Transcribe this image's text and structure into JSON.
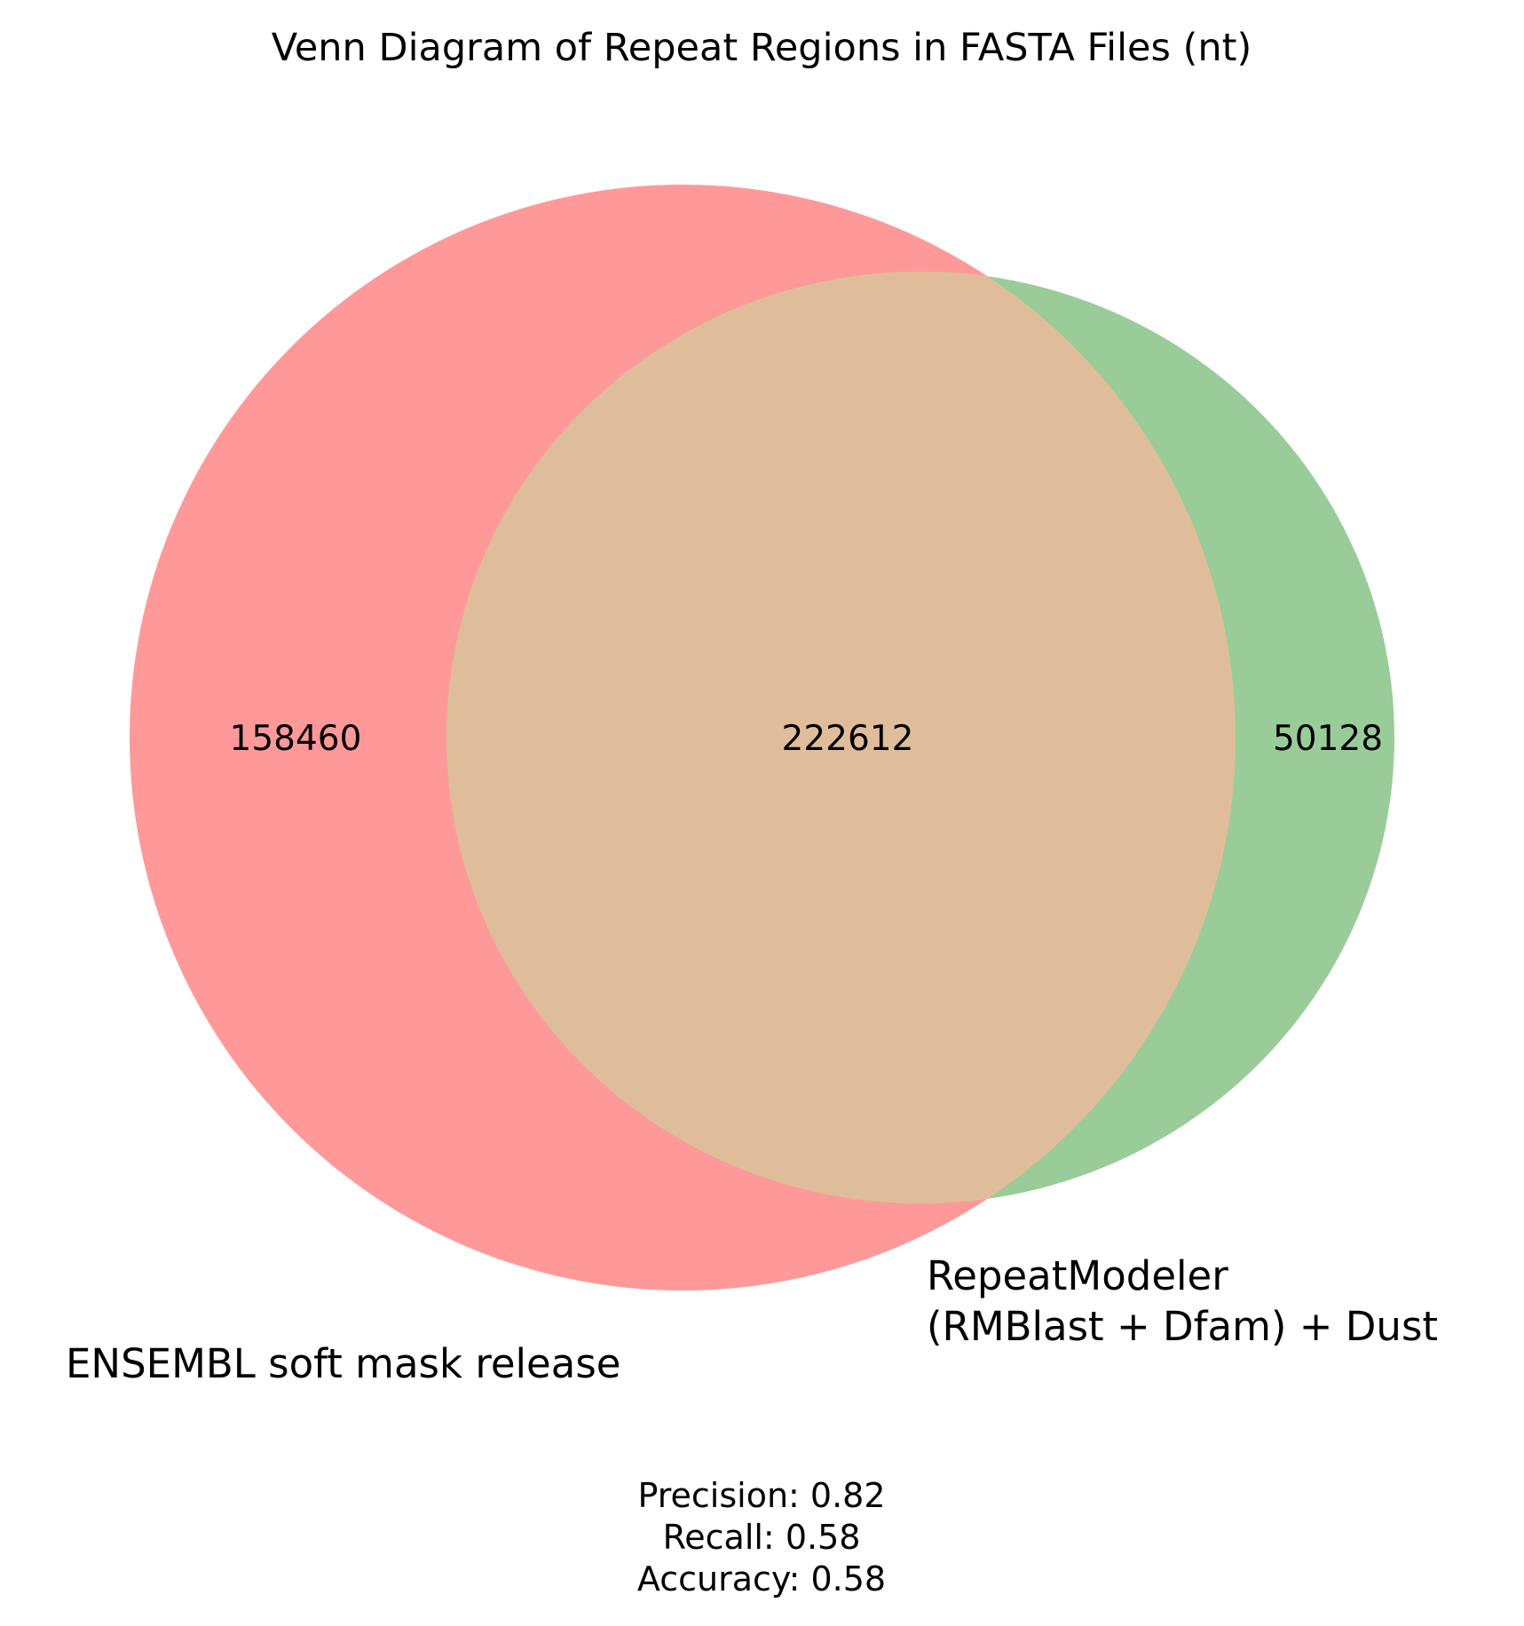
{
  "title": "Venn Diagram of Repeat Regions in FASTA Files (nt)",
  "sets": [
    {
      "name": "ENSEMBL soft mask release",
      "color": "#ff9999"
    },
    {
      "name_lines": [
        "RepeatModeler",
        "(RMBlast + Dfam) + Dust"
      ],
      "color": "#99cc99"
    }
  ],
  "overlap_color": "#e0bd9a",
  "regions": {
    "only_a": "158460",
    "both": "222612",
    "only_b": "50128"
  },
  "metrics": [
    "Precision: 0.82",
    "Recall: 0.58",
    "Accuracy: 0.58"
  ]
}
